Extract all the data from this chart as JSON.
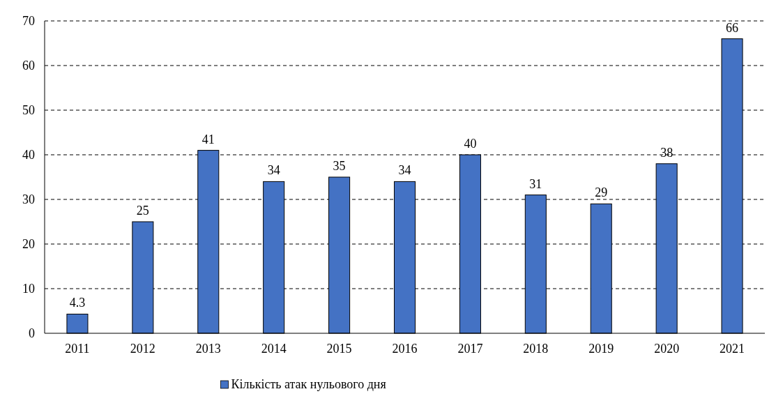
{
  "chart_data": {
    "type": "bar",
    "categories": [
      "2011",
      "2012",
      "2013",
      "2014",
      "2015",
      "2016",
      "2017",
      "2018",
      "2019",
      "2020",
      "2021"
    ],
    "series": [
      {
        "name": "Кількість атак нульового дня",
        "color": "#4472c4",
        "values": [
          4.3,
          25,
          41,
          34,
          35,
          34,
          40,
          31,
          29,
          38,
          66
        ]
      }
    ],
    "ylim": [
      0,
      70
    ],
    "yticks": [
      0,
      10,
      20,
      30,
      40,
      50,
      60,
      70
    ],
    "grid": "y",
    "legend": "bottom",
    "data_labels": true
  }
}
